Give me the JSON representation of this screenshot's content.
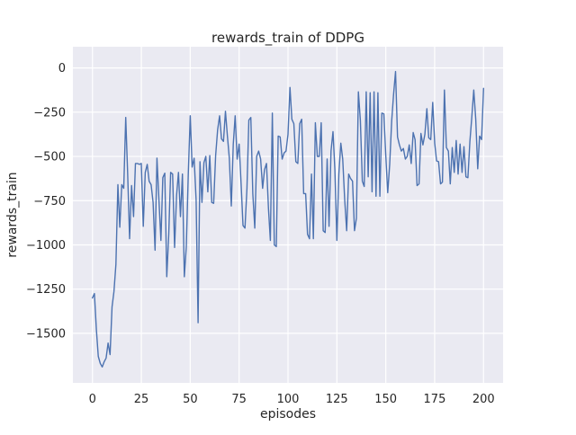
{
  "figure": {
    "title": "rewards_train of DDPG",
    "xlabel": "episodes",
    "ylabel": "rewards_train"
  },
  "chart_data": {
    "type": "line",
    "title": "rewards_train of DDPG",
    "xlabel": "episodes",
    "ylabel": "rewards_train",
    "series_name": "rewards_train",
    "x": {
      "start": 0,
      "step": 1
    },
    "values": [
      -1300,
      -1275,
      -1480,
      -1630,
      -1670,
      -1690,
      -1660,
      -1640,
      -1555,
      -1620,
      -1350,
      -1265,
      -1110,
      -660,
      -900,
      -660,
      -680,
      -280,
      -590,
      -965,
      -665,
      -840,
      -540,
      -540,
      -545,
      -540,
      -895,
      -590,
      -545,
      -640,
      -660,
      -760,
      -1030,
      -510,
      -745,
      -975,
      -620,
      -595,
      -1180,
      -940,
      -590,
      -600,
      -1015,
      -720,
      -590,
      -840,
      -600,
      -1180,
      -1010,
      -600,
      -270,
      -560,
      -510,
      -745,
      -1440,
      -530,
      -760,
      -535,
      -500,
      -700,
      -495,
      -760,
      -765,
      -495,
      -350,
      -270,
      -400,
      -415,
      -245,
      -380,
      -510,
      -780,
      -430,
      -270,
      -515,
      -430,
      -655,
      -890,
      -905,
      -680,
      -295,
      -280,
      -710,
      -905,
      -500,
      -470,
      -515,
      -680,
      -575,
      -540,
      -795,
      -975,
      -255,
      -1000,
      -1010,
      -385,
      -390,
      -515,
      -480,
      -470,
      -375,
      -110,
      -290,
      -315,
      -530,
      -540,
      -315,
      -290,
      -710,
      -710,
      -940,
      -965,
      -600,
      -965,
      -310,
      -500,
      -500,
      -310,
      -920,
      -930,
      -515,
      -895,
      -470,
      -360,
      -575,
      -975,
      -600,
      -425,
      -515,
      -745,
      -920,
      -600,
      -625,
      -640,
      -920,
      -850,
      -135,
      -295,
      -640,
      -670,
      -135,
      -615,
      -140,
      -700,
      -135,
      -725,
      -140,
      -725,
      -255,
      -260,
      -490,
      -705,
      -545,
      -300,
      -150,
      -20,
      -390,
      -435,
      -470,
      -455,
      -515,
      -500,
      -435,
      -540,
      -365,
      -405,
      -665,
      -655,
      -370,
      -435,
      -375,
      -230,
      -395,
      -405,
      -195,
      -425,
      -525,
      -530,
      -655,
      -645,
      -125,
      -450,
      -470,
      -655,
      -450,
      -590,
      -410,
      -600,
      -430,
      -590,
      -445,
      -615,
      -620,
      -415,
      -280,
      -125,
      -290,
      -570,
      -385,
      -405,
      -115
    ],
    "xlim": [
      -10,
      210
    ],
    "ylim": [
      -1780,
      120
    ],
    "xticks": {
      "values": [
        0,
        25,
        50,
        75,
        100,
        125,
        150,
        175,
        200
      ],
      "labels": [
        "0",
        "25",
        "50",
        "75",
        "100",
        "125",
        "150",
        "175",
        "200"
      ]
    },
    "yticks": {
      "values": [
        0,
        -250,
        -500,
        -750,
        -1000,
        -1250,
        -1500
      ],
      "labels": [
        "0",
        "−250",
        "−500",
        "−750",
        "−1000",
        "−1250",
        "−1500"
      ]
    },
    "grid": true,
    "legend": "none",
    "colors": {
      "line": "#4c72b0",
      "plot_background": "#eaeaf2",
      "grid": "#ffffff",
      "text": "#262626",
      "figure_background": "#ffffff"
    }
  }
}
